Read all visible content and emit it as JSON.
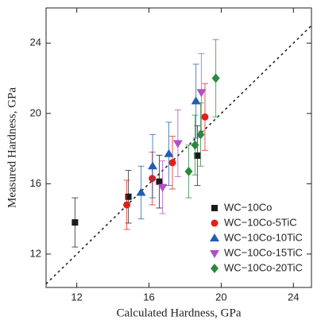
{
  "chart_data": {
    "type": "scatter",
    "x_label": "Calculated Hardness, GPa",
    "y_label": "Measured Hardness, GPa",
    "xlim": [
      10.3,
      25
    ],
    "ylim": [
      10.1,
      26
    ],
    "xticks": [
      12,
      16,
      20,
      24
    ],
    "yticks": [
      12,
      16,
      20,
      24
    ],
    "diagonal": true,
    "legend": "lower right",
    "series": [
      {
        "name": "WC−10Co",
        "color": "#1a1a1a",
        "marker": "square",
        "x": [
          11.9,
          14.86,
          16.57,
          18.68
        ],
        "values": [
          13.8,
          15.26,
          16.12,
          17.6
        ],
        "errors": [
          1.4,
          1.5,
          1.5,
          1.7
        ]
      },
      {
        "name": "WC−10Co-5TiC",
        "color": "#e0201b",
        "marker": "circle",
        "x": [
          14.77,
          16.18,
          17.3,
          19.1
        ],
        "values": [
          14.8,
          16.3,
          17.2,
          19.8
        ],
        "errors": [
          1.4,
          1.5,
          1.5,
          1.9
        ]
      },
      {
        "name": "WC−10Co-10TiC",
        "color": "#1f5fb4",
        "marker": "triangle",
        "x": [
          15.56,
          16.2,
          17.1,
          18.6
        ],
        "values": [
          15.5,
          17.0,
          17.7,
          20.7
        ],
        "errors": [
          1.5,
          1.8,
          1.8,
          2.1
        ]
      },
      {
        "name": "WC−10Co-15TiC",
        "color": "#b24fc9",
        "marker": "down-triangle",
        "x": [
          16.75,
          17.6,
          18.9
        ],
        "values": [
          15.8,
          18.3,
          21.2
        ],
        "errors": [
          1.5,
          1.9,
          2.2
        ]
      },
      {
        "name": "WC−10Co-20TiC",
        "color": "#2a8a3c",
        "marker": "diamond",
        "x": [
          18.2,
          18.55,
          18.86,
          19.7
        ],
        "values": [
          16.7,
          18.2,
          18.8,
          22.0
        ],
        "errors": [
          1.5,
          1.7,
          1.8,
          2.2
        ]
      }
    ]
  }
}
